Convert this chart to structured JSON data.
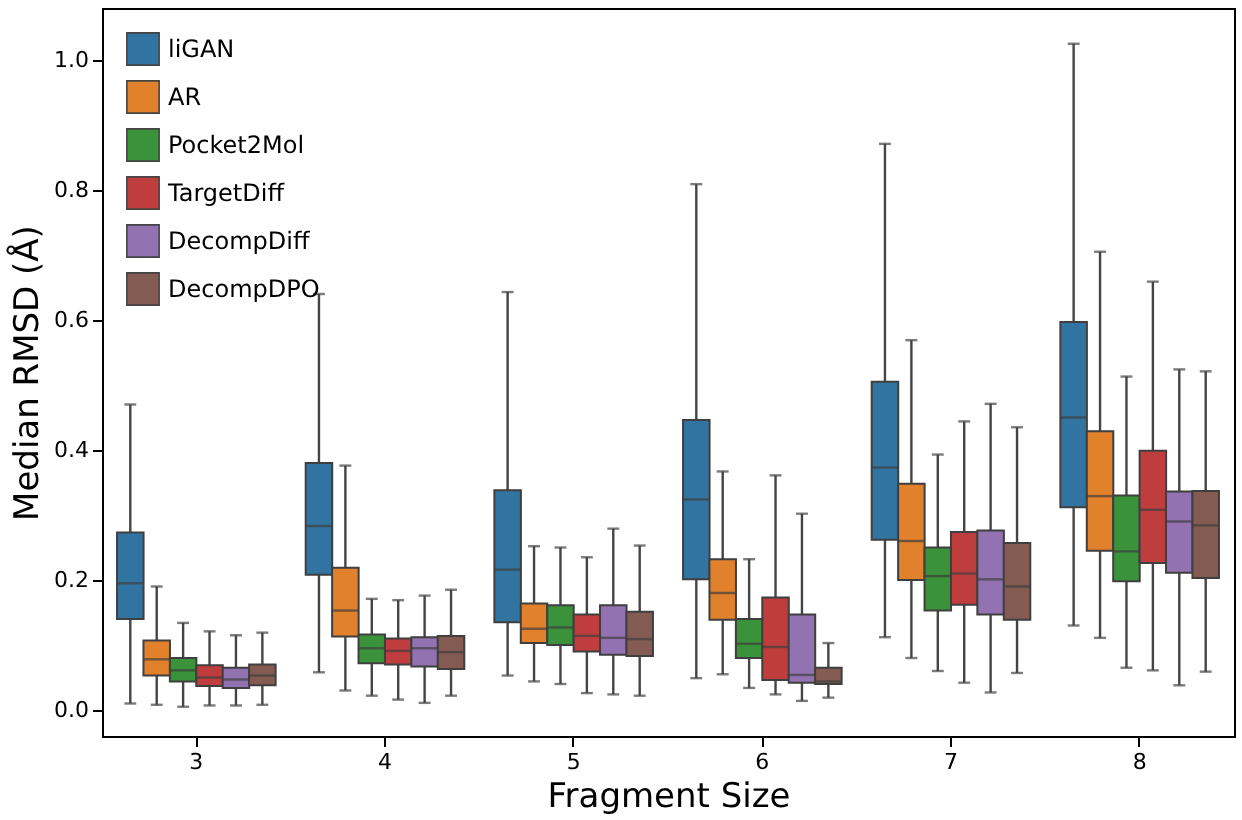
{
  "chart_data": {
    "type": "box",
    "xlabel": "Fragment Size",
    "ylabel": "Median RMSD (Å)",
    "categories": [
      "3",
      "4",
      "5",
      "6",
      "7",
      "8"
    ],
    "ylim": [
      -0.04,
      1.08
    ],
    "yticks": [
      {
        "value": 0,
        "label": "0.0"
      },
      0.2,
      0.4,
      0.6,
      0.8,
      {
        "value": 1,
        "label": "1.0"
      }
    ],
    "legend": "top left",
    "series": [
      {
        "name": "liGAN",
        "color": "#3274a1",
        "boxes": [
          {
            "low": 0.01,
            "q1": 0.14,
            "median": 0.195,
            "q3": 0.273,
            "high": 0.47
          },
          {
            "low": 0.058,
            "q1": 0.208,
            "median": 0.283,
            "q3": 0.38,
            "high": 0.64
          },
          {
            "low": 0.053,
            "q1": 0.135,
            "median": 0.216,
            "q3": 0.338,
            "high": 0.643
          },
          {
            "low": 0.049,
            "q1": 0.201,
            "median": 0.324,
            "q3": 0.446,
            "high": 0.809
          },
          {
            "low": 0.112,
            "q1": 0.262,
            "median": 0.373,
            "q3": 0.505,
            "high": 0.871
          },
          {
            "low": 0.13,
            "q1": 0.312,
            "median": 0.45,
            "q3": 0.597,
            "high": 1.025
          }
        ]
      },
      {
        "name": "AR",
        "color": "#e1812c",
        "boxes": [
          {
            "low": 0.008,
            "q1": 0.053,
            "median": 0.078,
            "q3": 0.107,
            "high": 0.19
          },
          {
            "low": 0.03,
            "q1": 0.113,
            "median": 0.153,
            "q3": 0.219,
            "high": 0.376
          },
          {
            "low": 0.044,
            "q1": 0.103,
            "median": 0.125,
            "q3": 0.164,
            "high": 0.252
          },
          {
            "low": 0.055,
            "q1": 0.139,
            "median": 0.18,
            "q3": 0.232,
            "high": 0.367
          },
          {
            "low": 0.08,
            "q1": 0.2,
            "median": 0.26,
            "q3": 0.348,
            "high": 0.569
          },
          {
            "low": 0.111,
            "q1": 0.245,
            "median": 0.329,
            "q3": 0.429,
            "high": 0.705
          }
        ]
      },
      {
        "name": "Pocket2Mol",
        "color": "#3a923a",
        "boxes": [
          {
            "low": 0.005,
            "q1": 0.044,
            "median": 0.061,
            "q3": 0.08,
            "high": 0.134
          },
          {
            "low": 0.022,
            "q1": 0.072,
            "median": 0.095,
            "q3": 0.116,
            "high": 0.171
          },
          {
            "low": 0.04,
            "q1": 0.1,
            "median": 0.127,
            "q3": 0.161,
            "high": 0.25
          },
          {
            "low": 0.034,
            "q1": 0.08,
            "median": 0.102,
            "q3": 0.14,
            "high": 0.232
          },
          {
            "low": 0.06,
            "q1": 0.153,
            "median": 0.206,
            "q3": 0.25,
            "high": 0.393
          },
          {
            "low": 0.065,
            "q1": 0.198,
            "median": 0.244,
            "q3": 0.33,
            "high": 0.513
          }
        ]
      },
      {
        "name": "TargetDiff",
        "color": "#c03d3e",
        "boxes": [
          {
            "low": 0.007,
            "q1": 0.037,
            "median": 0.05,
            "q3": 0.069,
            "high": 0.121
          },
          {
            "low": 0.016,
            "q1": 0.07,
            "median": 0.091,
            "q3": 0.11,
            "high": 0.169
          },
          {
            "low": 0.026,
            "q1": 0.09,
            "median": 0.114,
            "q3": 0.147,
            "high": 0.235
          },
          {
            "low": 0.024,
            "q1": 0.046,
            "median": 0.097,
            "q3": 0.173,
            "high": 0.361
          },
          {
            "low": 0.042,
            "q1": 0.162,
            "median": 0.21,
            "q3": 0.274,
            "high": 0.444
          },
          {
            "low": 0.061,
            "q1": 0.226,
            "median": 0.308,
            "q3": 0.399,
            "high": 0.659
          }
        ]
      },
      {
        "name": "DecompDiff",
        "color": "#9372b2",
        "boxes": [
          {
            "low": 0.007,
            "q1": 0.034,
            "median": 0.047,
            "q3": 0.065,
            "high": 0.115
          },
          {
            "low": 0.011,
            "q1": 0.067,
            "median": 0.095,
            "q3": 0.112,
            "high": 0.176
          },
          {
            "low": 0.024,
            "q1": 0.085,
            "median": 0.111,
            "q3": 0.161,
            "high": 0.279
          },
          {
            "low": 0.014,
            "q1": 0.042,
            "median": 0.054,
            "q3": 0.147,
            "high": 0.302
          },
          {
            "low": 0.027,
            "q1": 0.147,
            "median": 0.201,
            "q3": 0.276,
            "high": 0.471
          },
          {
            "low": 0.038,
            "q1": 0.211,
            "median": 0.29,
            "q3": 0.336,
            "high": 0.524
          }
        ]
      },
      {
        "name": "DecompDPO",
        "color": "#845b53",
        "boxes": [
          {
            "low": 0.008,
            "q1": 0.038,
            "median": 0.053,
            "q3": 0.07,
            "high": 0.119
          },
          {
            "low": 0.022,
            "q1": 0.063,
            "median": 0.089,
            "q3": 0.114,
            "high": 0.185
          },
          {
            "low": 0.022,
            "q1": 0.083,
            "median": 0.109,
            "q3": 0.151,
            "high": 0.253
          },
          {
            "low": 0.019,
            "q1": 0.04,
            "median": 0.044,
            "q3": 0.065,
            "high": 0.103
          },
          {
            "low": 0.057,
            "q1": 0.139,
            "median": 0.19,
            "q3": 0.257,
            "high": 0.435
          },
          {
            "low": 0.059,
            "q1": 0.203,
            "median": 0.284,
            "q3": 0.337,
            "high": 0.521
          }
        ]
      }
    ]
  }
}
